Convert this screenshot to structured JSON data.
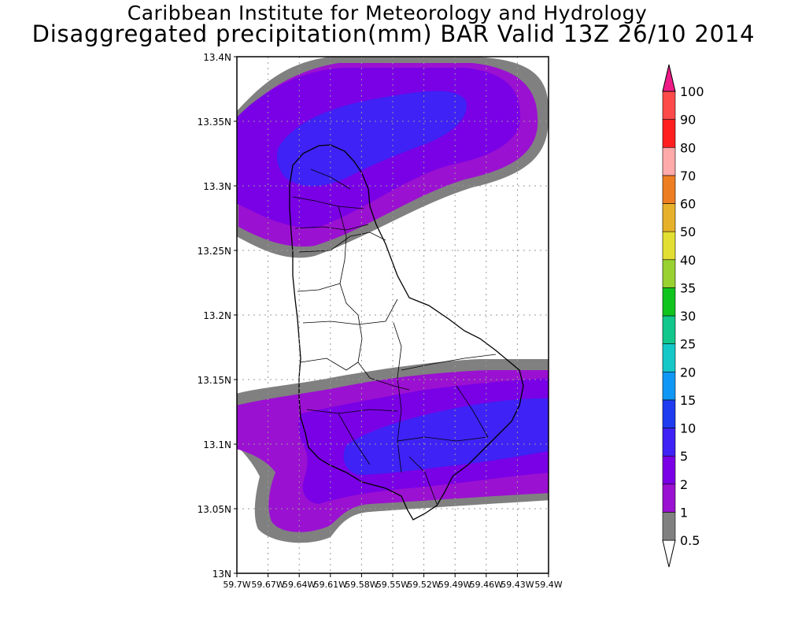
{
  "header": {
    "line1": "Caribbean Institute for Meteorology and Hydrology",
    "line2": "Disaggregated precipitation(mm) BAR Valid 13Z 26/10 2014"
  },
  "map": {
    "lat_labels": [
      "13.4N",
      "13.35N",
      "13.3N",
      "13.25N",
      "13.2N",
      "13.15N",
      "13.1N",
      "13.05N",
      "13N"
    ],
    "lon_labels": [
      "59.7W",
      "59.67W",
      "59.64W",
      "59.61W",
      "59.58W",
      "59.55W",
      "59.52W",
      "59.49W",
      "59.46W",
      "59.43W",
      "59.4W"
    ],
    "lat_range": [
      13.0,
      13.4
    ],
    "lon_range": [
      -59.7,
      -59.4
    ],
    "grid": "dotted"
  },
  "colorbar": {
    "levels": [
      "0.5",
      "1",
      "2",
      "5",
      "10",
      "15",
      "20",
      "25",
      "30",
      "35",
      "40",
      "50",
      "60",
      "70",
      "80",
      "90",
      "100"
    ],
    "colors": [
      "#ffffff",
      "#808080",
      "#9b11d1",
      "#7a00e6",
      "#3f22f5",
      "#1f3cf0",
      "#0f97f5",
      "#15c8c8",
      "#12c78c",
      "#10c41e",
      "#99d130",
      "#e3df32",
      "#e6b22a",
      "#ee7e22",
      "#ffaaaa",
      "#ff1f1f",
      "#ff4a4a",
      "#ee1b86"
    ]
  }
}
